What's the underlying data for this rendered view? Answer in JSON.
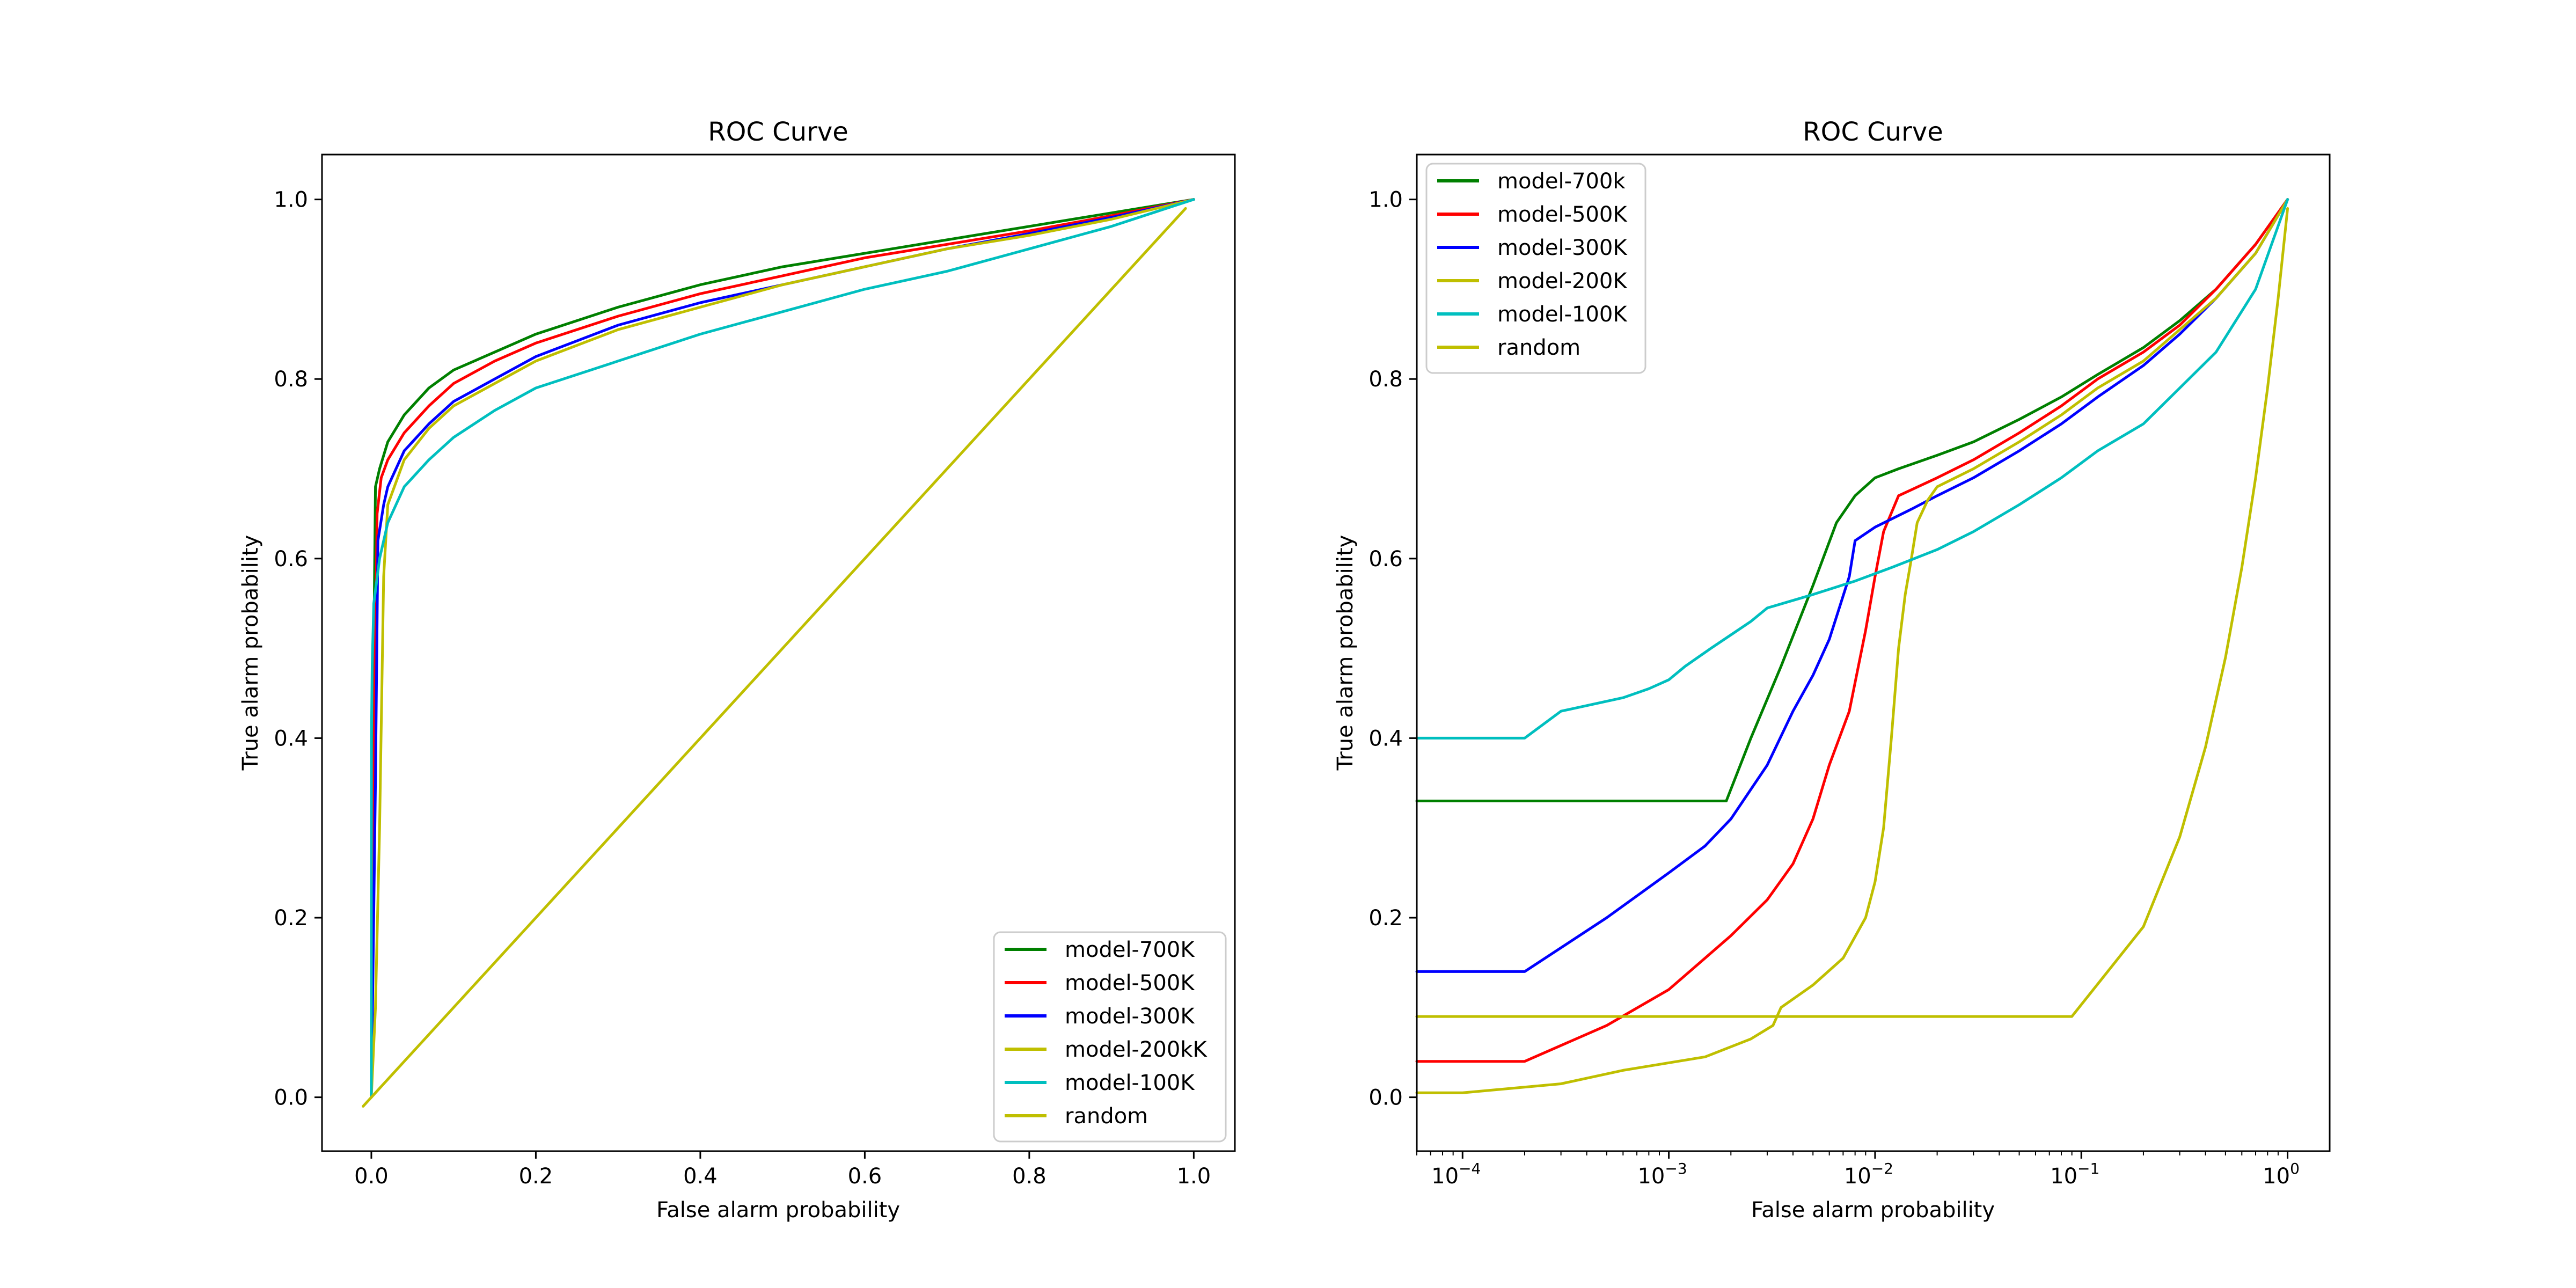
{
  "chart_data": [
    {
      "type": "line",
      "title": "ROC Curve",
      "xlabel": "False alarm probability",
      "ylabel": "True alarm probability",
      "xscale": "linear",
      "xlim": [
        -0.06,
        1.05
      ],
      "ylim": [
        -0.06,
        1.05
      ],
      "xticks": [
        0.0,
        0.2,
        0.4,
        0.6,
        0.8,
        1.0
      ],
      "xtick_labels": [
        "0.0",
        "0.2",
        "0.4",
        "0.6",
        "0.8",
        "1.0"
      ],
      "yticks": [
        0.0,
        0.2,
        0.4,
        0.6,
        0.8,
        1.0
      ],
      "ytick_labels": [
        "0.0",
        "0.2",
        "0.4",
        "0.6",
        "0.8",
        "1.0"
      ],
      "legend_position": "lower-right",
      "series": [
        {
          "name": "model-700K",
          "color": "#008000",
          "x": [
            0.0,
            0.003,
            0.005,
            0.01,
            0.02,
            0.04,
            0.07,
            0.1,
            0.15,
            0.2,
            0.3,
            0.4,
            0.5,
            0.6,
            0.7,
            0.8,
            0.9,
            1.0
          ],
          "y": [
            0.0,
            0.5,
            0.68,
            0.7,
            0.73,
            0.76,
            0.79,
            0.81,
            0.83,
            0.85,
            0.88,
            0.905,
            0.925,
            0.94,
            0.955,
            0.97,
            0.985,
            1.0
          ]
        },
        {
          "name": "model-500K",
          "color": "#ff0000",
          "x": [
            0.0,
            0.004,
            0.007,
            0.012,
            0.02,
            0.04,
            0.07,
            0.1,
            0.15,
            0.2,
            0.3,
            0.4,
            0.5,
            0.6,
            0.7,
            0.8,
            0.9,
            1.0
          ],
          "y": [
            0.0,
            0.45,
            0.65,
            0.69,
            0.71,
            0.74,
            0.77,
            0.795,
            0.82,
            0.84,
            0.87,
            0.895,
            0.915,
            0.935,
            0.95,
            0.965,
            0.982,
            1.0
          ]
        },
        {
          "name": "model-300K",
          "color": "#0000ff",
          "x": [
            0.0,
            0.005,
            0.008,
            0.015,
            0.02,
            0.04,
            0.07,
            0.1,
            0.15,
            0.2,
            0.3,
            0.4,
            0.5,
            0.6,
            0.7,
            0.8,
            0.9,
            1.0
          ],
          "y": [
            0.0,
            0.35,
            0.62,
            0.66,
            0.68,
            0.72,
            0.75,
            0.775,
            0.8,
            0.825,
            0.86,
            0.885,
            0.905,
            0.925,
            0.945,
            0.962,
            0.98,
            1.0
          ]
        },
        {
          "name": "model-200kK",
          "color": "#bfbf00",
          "x": [
            0.0,
            0.005,
            0.01,
            0.015,
            0.02,
            0.04,
            0.07,
            0.1,
            0.15,
            0.2,
            0.3,
            0.4,
            0.5,
            0.6,
            0.7,
            0.8,
            0.9,
            1.0
          ],
          "y": [
            0.0,
            0.1,
            0.3,
            0.58,
            0.66,
            0.71,
            0.745,
            0.77,
            0.795,
            0.82,
            0.855,
            0.88,
            0.905,
            0.925,
            0.945,
            0.96,
            0.978,
            1.0
          ]
        },
        {
          "name": "model-100K",
          "color": "#00bfbf",
          "x": [
            0.0,
            0.0001,
            0.001,
            0.003,
            0.01,
            0.02,
            0.04,
            0.07,
            0.1,
            0.15,
            0.2,
            0.3,
            0.4,
            0.5,
            0.6,
            0.7,
            0.8,
            0.9,
            1.0
          ],
          "y": [
            0.0,
            0.4,
            0.48,
            0.55,
            0.6,
            0.64,
            0.68,
            0.71,
            0.735,
            0.765,
            0.79,
            0.82,
            0.85,
            0.875,
            0.9,
            0.92,
            0.945,
            0.97,
            1.0
          ]
        },
        {
          "name": "random",
          "color": "#bfbf00",
          "x": [
            -0.01,
            0.99
          ],
          "y": [
            -0.01,
            0.99
          ]
        }
      ]
    },
    {
      "type": "line",
      "title": "ROC Curve",
      "xlabel": "False alarm probability",
      "ylabel": "True alarm probability",
      "xscale": "log",
      "xlim": [
        6e-05,
        1.6
      ],
      "ylim": [
        -0.06,
        1.05
      ],
      "xticks": [
        0.0001,
        0.001,
        0.01,
        0.1,
        1
      ],
      "xtick_labels": [
        "10",
        "10",
        "10",
        "10",
        "10"
      ],
      "xtick_exponents": [
        "−4",
        "−3",
        "−2",
        "−1",
        "0"
      ],
      "yticks": [
        0.0,
        0.2,
        0.4,
        0.6,
        0.8,
        1.0
      ],
      "ytick_labels": [
        "0.0",
        "0.2",
        "0.4",
        "0.6",
        "0.8",
        "1.0"
      ],
      "legend_position": "upper-left",
      "series": [
        {
          "name": "model-700k",
          "color": "#008000",
          "x": [
            6e-05,
            0.0019,
            0.0025,
            0.0035,
            0.005,
            0.0065,
            0.008,
            0.01,
            0.013,
            0.02,
            0.03,
            0.05,
            0.08,
            0.12,
            0.2,
            0.3,
            0.45,
            0.7,
            1.0
          ],
          "y": [
            0.33,
            0.33,
            0.4,
            0.48,
            0.57,
            0.64,
            0.67,
            0.69,
            0.7,
            0.715,
            0.73,
            0.755,
            0.78,
            0.805,
            0.835,
            0.865,
            0.9,
            0.95,
            1.0
          ]
        },
        {
          "name": "model-500K",
          "color": "#ff0000",
          "x": [
            6e-05,
            0.0002,
            0.0005,
            0.001,
            0.002,
            0.003,
            0.004,
            0.005,
            0.006,
            0.0075,
            0.009,
            0.01,
            0.011,
            0.013,
            0.02,
            0.03,
            0.05,
            0.08,
            0.12,
            0.2,
            0.3,
            0.45,
            0.7,
            1.0
          ],
          "y": [
            0.04,
            0.04,
            0.08,
            0.12,
            0.18,
            0.22,
            0.26,
            0.31,
            0.37,
            0.43,
            0.52,
            0.58,
            0.63,
            0.67,
            0.69,
            0.71,
            0.74,
            0.77,
            0.8,
            0.83,
            0.86,
            0.9,
            0.95,
            1.0
          ]
        },
        {
          "name": "model-300K",
          "color": "#0000ff",
          "x": [
            6e-05,
            0.0002,
            0.0005,
            0.001,
            0.0015,
            0.002,
            0.003,
            0.004,
            0.005,
            0.006,
            0.0075,
            0.008,
            0.01,
            0.015,
            0.02,
            0.03,
            0.05,
            0.08,
            0.12,
            0.2,
            0.3,
            0.45,
            0.7,
            1.0
          ],
          "y": [
            0.14,
            0.14,
            0.2,
            0.25,
            0.28,
            0.31,
            0.37,
            0.43,
            0.47,
            0.51,
            0.58,
            0.62,
            0.635,
            0.655,
            0.67,
            0.69,
            0.72,
            0.75,
            0.78,
            0.815,
            0.85,
            0.89,
            0.94,
            1.0
          ]
        },
        {
          "name": "model-200K",
          "color": "#bfbf00",
          "x": [
            6e-05,
            0.0001,
            0.0003,
            0.0006,
            0.0015,
            0.0025,
            0.0032,
            0.0035,
            0.005,
            0.007,
            0.009,
            0.01,
            0.011,
            0.012,
            0.013,
            0.014,
            0.015,
            0.016,
            0.018,
            0.02,
            0.03,
            0.05,
            0.08,
            0.12,
            0.2,
            0.3,
            0.45,
            0.7,
            1.0
          ],
          "y": [
            0.005,
            0.005,
            0.015,
            0.03,
            0.045,
            0.065,
            0.08,
            0.1,
            0.125,
            0.155,
            0.2,
            0.24,
            0.3,
            0.4,
            0.5,
            0.56,
            0.6,
            0.64,
            0.665,
            0.68,
            0.7,
            0.73,
            0.76,
            0.79,
            0.82,
            0.855,
            0.89,
            0.94,
            1.0
          ]
        },
        {
          "name": "model-100K",
          "color": "#00bfbf",
          "x": [
            6e-05,
            0.0002,
            0.0003,
            0.0006,
            0.0008,
            0.001,
            0.0012,
            0.0016,
            0.002,
            0.0025,
            0.003,
            0.005,
            0.008,
            0.012,
            0.02,
            0.03,
            0.05,
            0.08,
            0.12,
            0.2,
            0.3,
            0.45,
            0.7,
            1.0
          ],
          "y": [
            0.4,
            0.4,
            0.43,
            0.445,
            0.455,
            0.465,
            0.48,
            0.5,
            0.515,
            0.53,
            0.545,
            0.56,
            0.575,
            0.59,
            0.61,
            0.63,
            0.66,
            0.69,
            0.72,
            0.75,
            0.79,
            0.83,
            0.9,
            1.0
          ]
        },
        {
          "name": "random",
          "color": "#bfbf00",
          "x": [
            6e-05,
            0.09,
            0.2,
            0.3,
            0.4,
            0.5,
            0.6,
            0.7,
            0.8,
            0.9,
            1.0
          ],
          "y": [
            0.09,
            0.09,
            0.19,
            0.29,
            0.39,
            0.49,
            0.59,
            0.69,
            0.79,
            0.89,
            0.99
          ]
        }
      ]
    }
  ]
}
